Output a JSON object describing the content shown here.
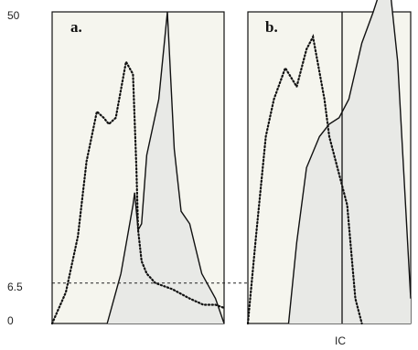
{
  "chart_data": [
    {
      "type": "area",
      "panel_label": "a.",
      "ylim": [
        0,
        50
      ],
      "y_ticks": [
        "50",
        "6.5",
        "0"
      ],
      "threshold_line": 6.5,
      "background": "#f5f5ee",
      "series": [
        {
          "style": "dotted",
          "x": [
            0,
            0.08,
            0.15,
            0.2,
            0.26,
            0.3,
            0.33,
            0.37,
            0.43,
            0.47,
            0.49,
            0.5,
            0.52,
            0.55,
            0.6,
            0.7,
            0.8,
            0.88,
            0.95,
            1.0
          ],
          "y": [
            0,
            5,
            14,
            26,
            34,
            33,
            32,
            33,
            42,
            40,
            25,
            15,
            10,
            8,
            6.5,
            5.5,
            4,
            3,
            3,
            2.5
          ]
        },
        {
          "style": "solid",
          "filled": true,
          "x": [
            0.32,
            0.4,
            0.47,
            0.48,
            0.5,
            0.52,
            0.55,
            0.62,
            0.67,
            0.71,
            0.75,
            0.8,
            0.87,
            0.95,
            1.0
          ],
          "y": [
            0,
            8,
            19,
            21,
            15,
            16,
            27,
            36,
            50,
            28,
            18,
            16,
            8,
            4,
            0
          ]
        }
      ]
    },
    {
      "type": "area",
      "panel_label": "b.",
      "ylim": [
        0,
        50
      ],
      "background": "#f5f5ee",
      "vertical_marker": {
        "label": "IC"
      },
      "series": [
        {
          "style": "dotted",
          "x": [
            0,
            0.05,
            0.11,
            0.16,
            0.23,
            0.3,
            0.36,
            0.4,
            0.47,
            0.5,
            0.55,
            0.61,
            0.64,
            0.66,
            0.7
          ],
          "y": [
            0,
            14,
            30,
            36,
            41,
            38,
            44,
            46,
            36,
            30,
            25,
            19,
            10,
            4,
            0
          ]
        },
        {
          "style": "solid",
          "filled": true,
          "x": [
            0.25,
            0.3,
            0.36,
            0.44,
            0.5,
            0.56,
            0.62,
            0.7,
            0.77,
            0.82,
            0.86,
            0.92,
            1.0
          ],
          "y": [
            0,
            13,
            25,
            30,
            32,
            33,
            36,
            45,
            50,
            54,
            57,
            42,
            4
          ]
        }
      ]
    }
  ],
  "colors": {
    "fill": "#e8e9e6",
    "line": "#111111",
    "plot_background": "#f5f5ee"
  }
}
